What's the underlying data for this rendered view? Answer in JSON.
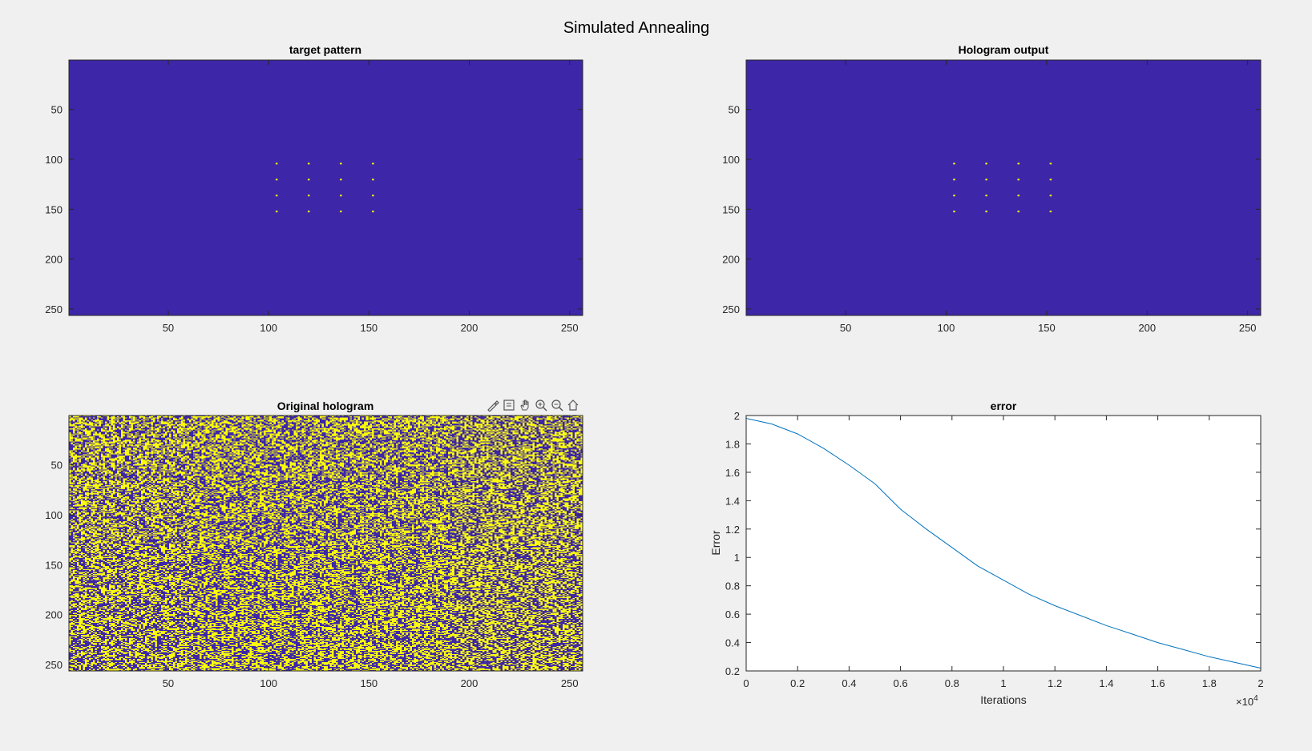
{
  "figure": {
    "title": "Simulated Annealing",
    "colors": {
      "background": "#f0f0f0",
      "low": "#3d26a8",
      "high": "#f9fb0e",
      "line": "#0072bd",
      "axis": "#262626"
    }
  },
  "toolbar": {
    "icons": [
      "brush-icon",
      "datatip-icon",
      "pan-hand-icon",
      "zoom-in-icon",
      "zoom-out-icon",
      "home-icon"
    ]
  },
  "chart_data": [
    {
      "type": "heatmap",
      "title": "target pattern",
      "xlim": [
        0.5,
        256.5
      ],
      "ylim": [
        0.5,
        256.5
      ],
      "x_ticks": [
        50,
        100,
        150,
        200,
        250
      ],
      "y_ticks": [
        50,
        100,
        150,
        200,
        250
      ],
      "y_reversed": true,
      "background_value": "low",
      "spots": {
        "columns": [
          104,
          120,
          136,
          152
        ],
        "rows": [
          104,
          120,
          136,
          152
        ],
        "value": "high"
      }
    },
    {
      "type": "heatmap",
      "title": "Hologram output",
      "xlim": [
        0.5,
        256.5
      ],
      "ylim": [
        0.5,
        256.5
      ],
      "x_ticks": [
        50,
        100,
        150,
        200,
        250
      ],
      "y_ticks": [
        50,
        100,
        150,
        200,
        250
      ],
      "y_reversed": true,
      "background_value": "low",
      "spots": {
        "columns": [
          104,
          120,
          136,
          152
        ],
        "rows": [
          104,
          120,
          136,
          152
        ],
        "value": "high"
      }
    },
    {
      "type": "heatmap",
      "title": "Original hologram",
      "xlim": [
        0.5,
        256.5
      ],
      "ylim": [
        0.5,
        256.5
      ],
      "x_ticks": [
        50,
        100,
        150,
        200,
        250
      ],
      "y_ticks": [
        50,
        100,
        150,
        200,
        250
      ],
      "y_reversed": true,
      "values": "random binary (0/1) phase pattern, 256x256"
    },
    {
      "type": "line",
      "title": "error",
      "xlabel": "Iterations",
      "ylabel": "Error",
      "x_exponent_label": "×10",
      "x_exponent": "4",
      "xlim": [
        0,
        2
      ],
      "ylim": [
        0.2,
        2
      ],
      "x_ticks": [
        0,
        0.2,
        0.4,
        0.6,
        0.8,
        1,
        1.2,
        1.4,
        1.6,
        1.8,
        2
      ],
      "y_ticks": [
        0.2,
        0.4,
        0.6,
        0.8,
        1,
        1.2,
        1.4,
        1.6,
        1.8,
        2
      ],
      "series": [
        {
          "x": [
            0,
            0.1,
            0.2,
            0.3,
            0.4,
            0.5,
            0.6,
            0.7,
            0.8,
            0.9,
            1.0,
            1.1,
            1.2,
            1.3,
            1.4,
            1.5,
            1.6,
            1.7,
            1.8,
            1.9,
            2.0
          ],
          "values": [
            1.98,
            1.94,
            1.87,
            1.77,
            1.65,
            1.52,
            1.34,
            1.2,
            1.07,
            0.94,
            0.84,
            0.74,
            0.66,
            0.59,
            0.52,
            0.46,
            0.4,
            0.35,
            0.3,
            0.26,
            0.22
          ]
        }
      ]
    }
  ]
}
